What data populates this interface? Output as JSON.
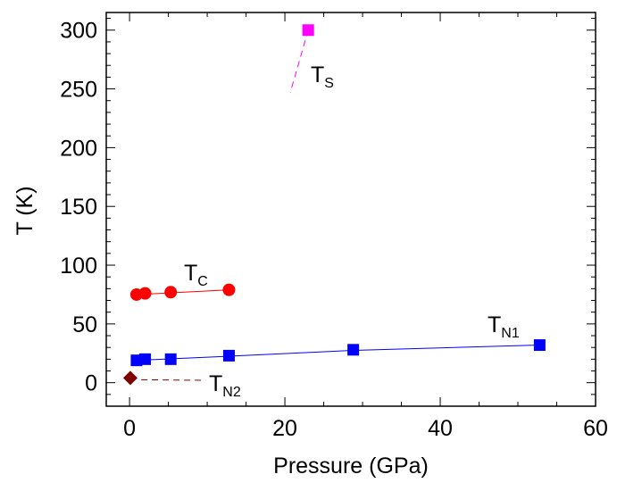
{
  "chart_data": {
    "type": "scatter",
    "title": "",
    "xlabel": "Pressure (GPa)",
    "ylabel": "T (K)",
    "xlim": [
      -3,
      60
    ],
    "ylim": [
      -20,
      315
    ],
    "grid": false,
    "x_ticks": [
      0,
      20,
      40,
      60
    ],
    "y_ticks": [
      0,
      50,
      100,
      150,
      200,
      250,
      300
    ],
    "colors": {
      "T_S": "#ff00ff",
      "T_C": "#ff0000",
      "T_N1": "#0000ff",
      "T_N2": "#800000"
    },
    "series": [
      {
        "key": "T_S",
        "label_main": "T",
        "label_sub": "S",
        "marker": "square",
        "points": [
          {
            "x": 23,
            "y": 300
          }
        ],
        "line": {
          "style": "dashed",
          "points": [
            {
              "x": 23,
              "y": 300
            },
            {
              "x": 20.7,
              "y": 247
            }
          ]
        }
      },
      {
        "key": "T_C",
        "label_main": "T",
        "label_sub": "C",
        "marker": "circle",
        "points": [
          {
            "x": 0.9,
            "y": 75
          },
          {
            "x": 2.0,
            "y": 76
          },
          {
            "x": 5.3,
            "y": 77
          },
          {
            "x": 12.8,
            "y": 79
          }
        ],
        "line": {
          "style": "solid",
          "points": [
            {
              "x": 0.9,
              "y": 75
            },
            {
              "x": 12.8,
              "y": 79
            }
          ]
        }
      },
      {
        "key": "T_N1",
        "label_main": "T",
        "label_sub": "N1",
        "marker": "square",
        "points": [
          {
            "x": 0.9,
            "y": 19
          },
          {
            "x": 2.0,
            "y": 20
          },
          {
            "x": 5.3,
            "y": 20
          },
          {
            "x": 12.8,
            "y": 23
          },
          {
            "x": 28.8,
            "y": 28
          },
          {
            "x": 52.8,
            "y": 32
          }
        ],
        "line": {
          "style": "solid",
          "points": [
            {
              "x": 0.9,
              "y": 19
            },
            {
              "x": 12.8,
              "y": 22.5
            },
            {
              "x": 28.8,
              "y": 27.5
            },
            {
              "x": 52.8,
              "y": 32
            }
          ]
        }
      },
      {
        "key": "T_N2",
        "label_main": "T",
        "label_sub": "N2",
        "marker": "diamond",
        "points": [
          {
            "x": 0.1,
            "y": 4
          }
        ],
        "line": {
          "style": "dashed",
          "points": [
            {
              "x": 1.5,
              "y": 2.5
            },
            {
              "x": 9.8,
              "y": 2
            }
          ]
        }
      }
    ]
  }
}
